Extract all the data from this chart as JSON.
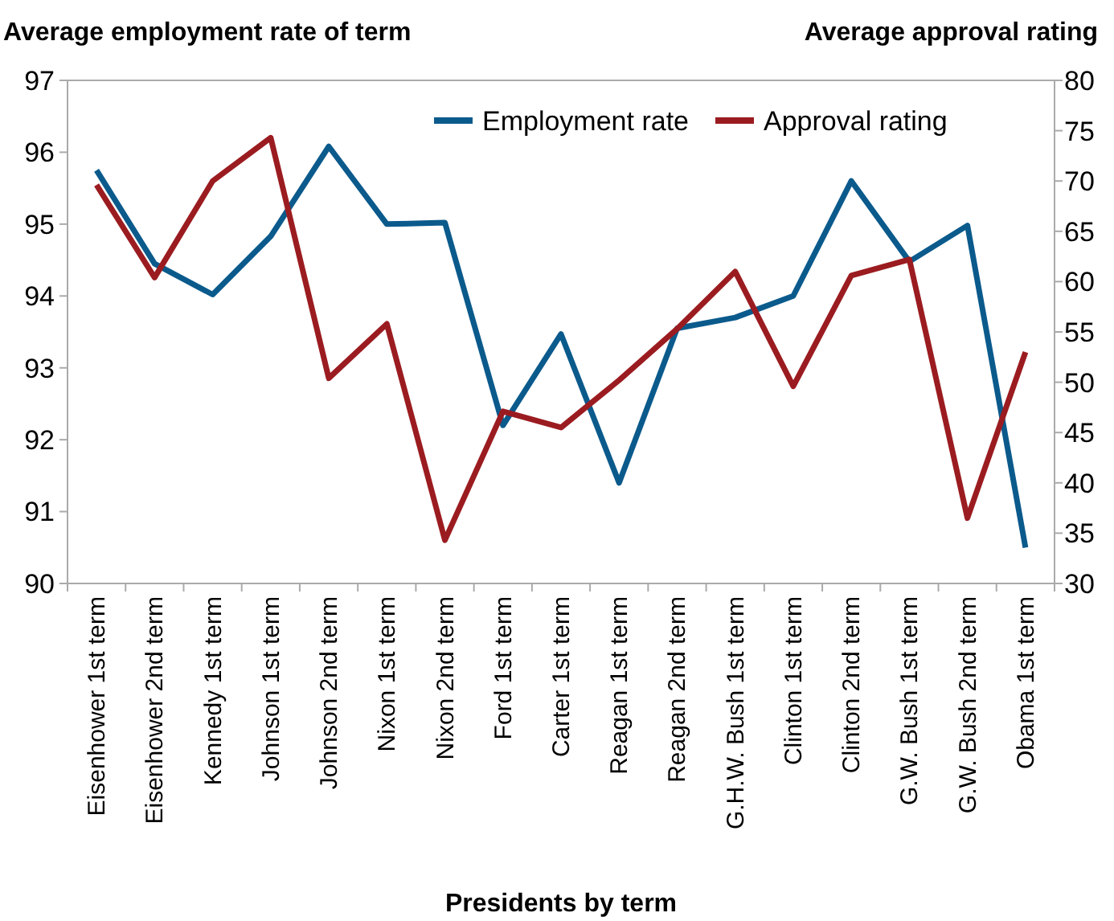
{
  "chart_data": {
    "type": "line",
    "ylabel": "Average employment rate of term",
    "y2label": "Average approval rating",
    "xlabel": "Presidents by term",
    "categories": [
      "Eisenhower 1st term",
      "Eisenhower 2nd term",
      "Kennedy 1st term",
      "Johnson 1st term",
      "Johnson 2nd term",
      "Nixon 1st term",
      "Nixon 2nd term",
      "Ford 1st term",
      "Carter 1st term",
      "Reagan 1st term",
      "Reagan 2nd term",
      "G.H.W. Bush 1st term",
      "Clinton 1st term",
      "Clinton 2nd term",
      "G.W. Bush 1st term",
      "G.W. Bush 2nd term",
      "Obama 1st term"
    ],
    "series": [
      {
        "name": "Employment rate",
        "color": "#0b5a8c",
        "values": [
          95.75,
          94.45,
          94.02,
          94.83,
          96.08,
          95.0,
          95.02,
          92.2,
          93.47,
          91.4,
          93.55,
          93.7,
          94.0,
          95.6,
          94.48,
          94.98,
          90.5
        ]
      },
      {
        "name": "Approval rating",
        "color": "#9b1c20",
        "axis": "y2",
        "values": [
          69.6,
          60.4,
          70.0,
          74.3,
          50.4,
          55.8,
          34.3,
          47.1,
          45.5,
          50.2,
          55.3,
          61.0,
          49.6,
          60.6,
          62.2,
          36.5,
          53.0
        ]
      }
    ],
    "ylim": [
      90,
      97
    ],
    "yticks": [
      90,
      91,
      92,
      93,
      94,
      95,
      96,
      97
    ],
    "y2lim": [
      30,
      80
    ],
    "y2ticks": [
      30,
      35,
      40,
      45,
      50,
      55,
      60,
      65,
      70,
      75,
      80
    ],
    "legend": "top right",
    "grid": false,
    "marker": "none",
    "line_style": "solid"
  }
}
